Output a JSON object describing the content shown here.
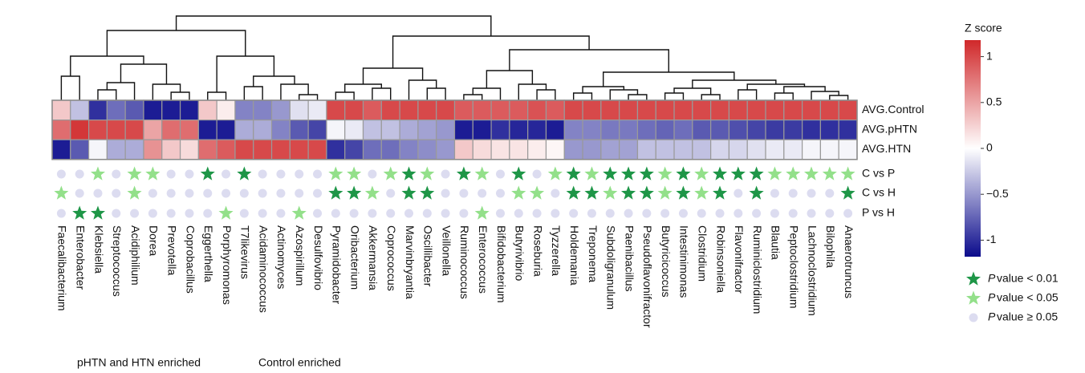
{
  "chart_data": {
    "type": "heatmap",
    "columns": [
      "Faecalibacterium",
      "Enterobacter",
      "Klebsiella",
      "Streptococcus",
      "Acidiphilium",
      "Dorea",
      "Prevotella",
      "Coprobacillus",
      "Eggerthella",
      "Porphyromonas",
      "T7likevirus",
      "Acidaminococcus",
      "Actinomyces",
      "Azospirillum",
      "Desulfovibrio",
      "Pyramidobacter",
      "Oribacterium",
      "Akkermansia",
      "Coprococcus",
      "Marvinbryantia",
      "Oscillibacter",
      "Veillonella",
      "Ruminococcus",
      "Enterococcus",
      "Bifidobacterium",
      "Butyrivibrio",
      "Roseburia",
      "Tyzzerella",
      "Holdemania",
      "Treponema",
      "Subdoligranulum",
      "Paenibacillus",
      "Pseudoflavonifractor",
      "Butyricicoccus",
      "Intestinimonas",
      "Clostridium",
      "Robinsoniella",
      "Flavonifractor",
      "Ruminiclostridium",
      "Blautia",
      "Peptoclostridium",
      "Lachnoclostridium",
      "Bilophila",
      "Anaerotruncus"
    ],
    "rows": [
      "AVG.Control",
      "AVG.pHTN",
      "AVG.HTN"
    ],
    "values": [
      [
        0.3,
        -0.3,
        -1.0,
        -0.7,
        -0.8,
        -1.1,
        -1.1,
        -1.1,
        0.3,
        0.1,
        -0.6,
        -0.6,
        -0.5,
        -0.15,
        -0.1,
        1.0,
        1.0,
        0.9,
        1.0,
        1.0,
        1.0,
        1.0,
        0.9,
        0.9,
        0.9,
        0.9,
        0.95,
        0.9,
        1.0,
        1.0,
        1.0,
        1.0,
        1.0,
        1.0,
        1.0,
        1.0,
        1.0,
        1.0,
        1.0,
        1.0,
        1.0,
        1.0,
        1.0,
        1.0
      ],
      [
        0.8,
        1.1,
        1.0,
        1.0,
        1.0,
        0.5,
        0.8,
        0.8,
        -1.1,
        -1.1,
        -0.4,
        -0.4,
        -0.6,
        -0.8,
        -0.9,
        -0.05,
        -0.1,
        -0.3,
        -0.3,
        -0.4,
        -0.45,
        -0.5,
        -1.1,
        -1.1,
        -1.0,
        -1.05,
        -1.05,
        -1.1,
        -0.6,
        -0.6,
        -0.65,
        -0.65,
        -0.7,
        -0.75,
        -0.7,
        -0.8,
        -0.8,
        -0.85,
        -0.9,
        -0.95,
        -0.95,
        -1.0,
        -1.0,
        -1.0
      ],
      [
        -1.1,
        -0.8,
        -0.05,
        -0.4,
        -0.4,
        0.6,
        0.3,
        0.2,
        0.8,
        0.9,
        1.0,
        1.0,
        1.0,
        1.0,
        1.0,
        -1.0,
        -0.9,
        -0.7,
        -0.7,
        -0.6,
        -0.55,
        -0.5,
        0.3,
        0.2,
        0.15,
        0.15,
        0.1,
        0.05,
        -0.5,
        -0.5,
        -0.45,
        -0.45,
        -0.3,
        -0.3,
        -0.3,
        -0.3,
        -0.2,
        -0.2,
        -0.15,
        -0.1,
        -0.1,
        -0.05,
        -0.05,
        -0.05
      ]
    ],
    "zlim": [
      -1.18,
      1.18
    ],
    "colors": {
      "low": "#0b0b8c",
      "mid": "#ffffff",
      "high": "#d0282a"
    },
    "colorbar_title": "Z score",
    "colorbar_ticks": [
      1,
      0.5,
      0,
      {
        "value": -0.5,
        "label": "−0.5"
      },
      -1
    ],
    "significance": {
      "rows": [
        "C vs P",
        "C vs H",
        "P vs H"
      ],
      "values": [
        [
          "ns",
          "ns",
          "light",
          "ns",
          "light",
          "light",
          "ns",
          "ns",
          "dark",
          "ns",
          "dark",
          "ns",
          "ns",
          "ns",
          "ns",
          "light",
          "light",
          "ns",
          "light",
          "dark",
          "light",
          "ns",
          "dark",
          "light",
          "ns",
          "dark",
          "ns",
          "light",
          "dark",
          "light",
          "dark",
          "dark",
          "dark",
          "light",
          "dark",
          "light",
          "dark",
          "dark",
          "dark",
          "light",
          "light",
          "light",
          "light",
          "light"
        ],
        [
          "light",
          "ns",
          "ns",
          "ns",
          "light",
          "ns",
          "ns",
          "ns",
          "ns",
          "ns",
          "ns",
          "ns",
          "ns",
          "ns",
          "ns",
          "dark",
          "dark",
          "light",
          "ns",
          "dark",
          "dark",
          "ns",
          "ns",
          "ns",
          "ns",
          "light",
          "light",
          "ns",
          "dark",
          "dark",
          "light",
          "dark",
          "dark",
          "light",
          "dark",
          "light",
          "dark",
          "ns",
          "dark",
          "ns",
          "ns",
          "ns",
          "ns",
          "dark"
        ],
        [
          "ns",
          "dark",
          "dark",
          "ns",
          "ns",
          "ns",
          "ns",
          "ns",
          "ns",
          "light",
          "ns",
          "ns",
          "ns",
          "light",
          "ns",
          "ns",
          "ns",
          "ns",
          "ns",
          "ns",
          "ns",
          "ns",
          "ns",
          "light",
          "ns",
          "ns",
          "ns",
          "ns",
          "ns",
          "ns",
          "ns",
          "ns",
          "ns",
          "ns",
          "ns",
          "ns",
          "ns",
          "ns",
          "ns",
          "ns",
          "ns",
          "ns",
          "ns",
          "ns"
        ]
      ],
      "colors": {
        "dark": "#1e9647",
        "light": "#93e08a",
        "ns": "#dcdcf0"
      },
      "legend": [
        {
          "level": "dark",
          "italic": "P",
          "label": "value < 0.01"
        },
        {
          "level": "light",
          "italic": "P",
          "label": "value < 0.05"
        },
        {
          "level": "ns",
          "italic": "P",
          "label": "value ≥ 0.05"
        }
      ]
    },
    "annotations": [
      "pHTN and HTN enriched",
      "Control enriched"
    ]
  }
}
